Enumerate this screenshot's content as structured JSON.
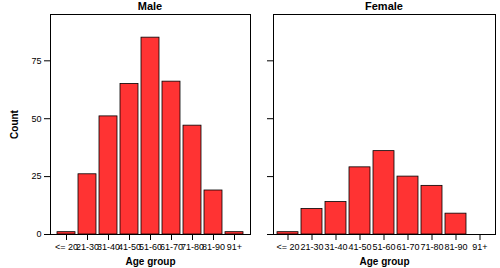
{
  "chart_data": [
    {
      "type": "bar",
      "title": "Male",
      "categories": [
        "<= 20",
        "21-30",
        "31-40",
        "41-50",
        "51-60",
        "61-70",
        "71-80",
        "81-90",
        "91+"
      ],
      "values": [
        1,
        26,
        51,
        65,
        85,
        66,
        47,
        19,
        1
      ],
      "color": "#ff3333",
      "x_label": "Age group",
      "y_label": "Count",
      "ylim": [
        0,
        95
      ],
      "yticks": [
        0,
        25,
        50,
        75
      ],
      "grid": false
    },
    {
      "type": "bar",
      "title": "Female",
      "categories": [
        "<= 20",
        "21-30",
        "31-40",
        "41-50",
        "51-60",
        "61-70",
        "71-80",
        "81-90",
        "91+"
      ],
      "values": [
        1,
        11,
        14,
        29,
        36,
        25,
        21,
        9,
        0
      ],
      "color": "#ff3333",
      "x_label": "Age group",
      "ylim": [
        0,
        95
      ],
      "yticks": [
        0,
        25,
        50,
        75
      ],
      "grid": false,
      "tick_labels": "x"
    }
  ]
}
